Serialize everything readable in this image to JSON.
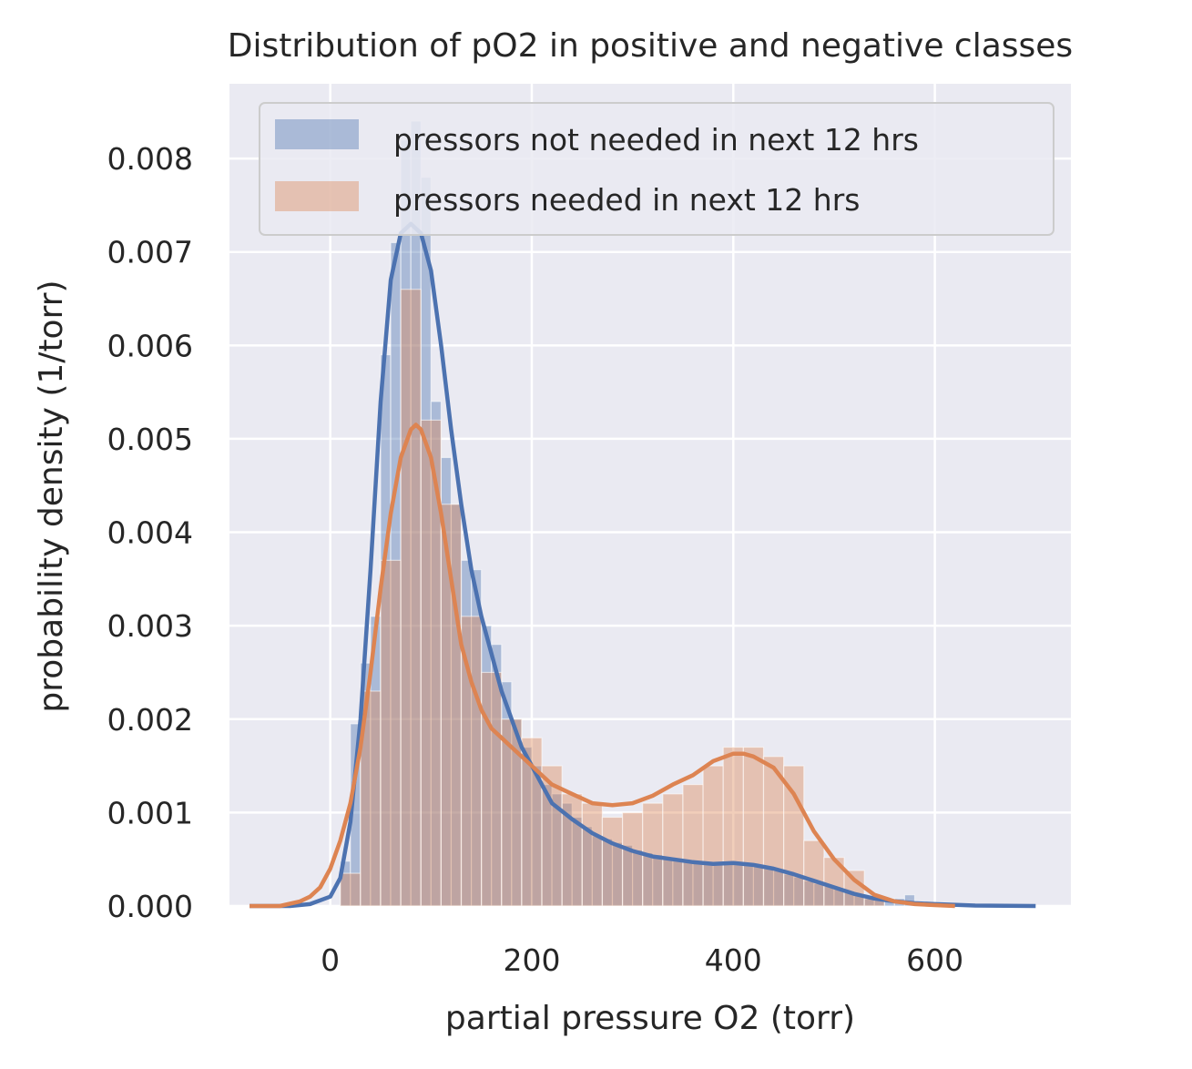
{
  "chart_data": {
    "type": "histogram",
    "title": "Distribution of pO2 in positive and negative classes",
    "xlabel": "partial pressure O2 (torr)",
    "ylabel": "probability density (1/torr)",
    "xlim": [
      -100,
      735
    ],
    "ylim": [
      0,
      0.0088
    ],
    "xticks": [
      0,
      200,
      400,
      600
    ],
    "xtick_labels": [
      "0",
      "200",
      "400",
      "600"
    ],
    "yticks": [
      0.0,
      0.001,
      0.002,
      0.003,
      0.004,
      0.005,
      0.006,
      0.007,
      0.008
    ],
    "ytick_labels": [
      "0.000",
      "0.001",
      "0.002",
      "0.003",
      "0.004",
      "0.005",
      "0.006",
      "0.007",
      "0.008"
    ],
    "grid": true,
    "legend_position": "top-right",
    "background": "#eaeaf2",
    "series": [
      {
        "name": "pressors not needed in next 12 hrs",
        "color": "#4c72b0",
        "hist_bin_edges": [
          10,
          20,
          30,
          40,
          50,
          60,
          70,
          80,
          90,
          100,
          110,
          120,
          130,
          140,
          150,
          160,
          170,
          180,
          190,
          200,
          210,
          220,
          230,
          240,
          250,
          260,
          270,
          280,
          290,
          300,
          310,
          320,
          330,
          340,
          350,
          360,
          370,
          380,
          390,
          400,
          410,
          420,
          430,
          440,
          450,
          460,
          470,
          480,
          490,
          500,
          510,
          520,
          530,
          540,
          550,
          560,
          570,
          580
        ],
        "hist_values": [
          0.00048,
          0.00195,
          0.0026,
          0.0031,
          0.0059,
          0.0071,
          0.0082,
          0.0084,
          0.0078,
          0.0054,
          0.0048,
          0.0043,
          0.0037,
          0.0036,
          0.003,
          0.0028,
          0.0024,
          0.002,
          0.0017,
          0.0015,
          0.0013,
          0.0012,
          0.0011,
          0.00095,
          0.00085,
          0.00075,
          0.00072,
          0.00068,
          0.00065,
          0.0006,
          0.00057,
          0.00055,
          0.00052,
          0.0005,
          0.00049,
          0.00047,
          0.00046,
          0.00045,
          0.00047,
          0.00046,
          0.00045,
          0.00042,
          0.0004,
          0.00038,
          0.00034,
          0.00031,
          0.00027,
          0.00024,
          0.00021,
          0.00019,
          0.00016,
          0.00013,
          0.0001,
          9e-05,
          8e-05,
          8e-05,
          0.00012
        ],
        "kde_x": [
          -80,
          -40,
          -20,
          0,
          10,
          20,
          30,
          40,
          50,
          60,
          70,
          80,
          90,
          100,
          110,
          120,
          130,
          140,
          150,
          160,
          170,
          180,
          190,
          200,
          210,
          220,
          240,
          260,
          280,
          300,
          320,
          340,
          360,
          380,
          400,
          420,
          440,
          460,
          480,
          500,
          520,
          540,
          560,
          580,
          600,
          640,
          700
        ],
        "kde_y": [
          0,
          0,
          2e-05,
          0.0001,
          0.0003,
          0.0009,
          0.002,
          0.0036,
          0.0054,
          0.0067,
          0.0072,
          0.0073,
          0.0072,
          0.0068,
          0.006,
          0.0051,
          0.0043,
          0.0036,
          0.0031,
          0.0027,
          0.0023,
          0.002,
          0.0017,
          0.0015,
          0.0013,
          0.0011,
          0.00093,
          0.00078,
          0.00067,
          0.00059,
          0.00053,
          0.0005,
          0.00047,
          0.00045,
          0.00046,
          0.00044,
          0.0004,
          0.00034,
          0.00027,
          0.0002,
          0.00013,
          8e-05,
          5e-05,
          3e-05,
          2e-05,
          5e-06,
          0
        ]
      },
      {
        "name": "pressors needed in next 12 hrs",
        "color": "#dd8452",
        "hist_bin_edges": [
          10,
          30,
          50,
          70,
          90,
          110,
          130,
          150,
          170,
          190,
          210,
          230,
          250,
          270,
          290,
          310,
          330,
          350,
          370,
          390,
          410,
          430,
          450,
          470,
          490,
          510,
          530,
          550
        ],
        "hist_values": [
          0.00035,
          0.0023,
          0.0037,
          0.0066,
          0.0052,
          0.0043,
          0.0031,
          0.0025,
          0.002,
          0.0018,
          0.0015,
          0.0012,
          0.0011,
          0.00095,
          0.001,
          0.0011,
          0.0012,
          0.0013,
          0.0015,
          0.0017,
          0.0017,
          0.0016,
          0.0015,
          0.0007,
          0.00052,
          0.00038,
          8e-05
        ],
        "kde_x": [
          -80,
          -50,
          -30,
          -20,
          -10,
          0,
          10,
          20,
          30,
          40,
          50,
          60,
          70,
          80,
          85,
          90,
          100,
          110,
          120,
          130,
          140,
          150,
          160,
          170,
          180,
          190,
          200,
          220,
          240,
          260,
          280,
          300,
          320,
          340,
          360,
          380,
          400,
          410,
          420,
          440,
          460,
          480,
          500,
          520,
          540,
          560,
          580,
          600,
          620
        ],
        "kde_y": [
          0,
          0,
          5e-05,
          0.0001,
          0.0002,
          0.0004,
          0.0007,
          0.0011,
          0.0017,
          0.0025,
          0.0034,
          0.0042,
          0.0048,
          0.0051,
          0.00515,
          0.0051,
          0.0048,
          0.0042,
          0.0035,
          0.0028,
          0.0024,
          0.0021,
          0.0019,
          0.0018,
          0.0017,
          0.0016,
          0.0015,
          0.0013,
          0.0012,
          0.0011,
          0.00108,
          0.0011,
          0.00118,
          0.0013,
          0.0014,
          0.00155,
          0.00163,
          0.00163,
          0.0016,
          0.00148,
          0.0012,
          0.0008,
          0.0005,
          0.00028,
          0.00012,
          5e-05,
          2e-05,
          1e-05,
          0
        ]
      }
    ]
  }
}
